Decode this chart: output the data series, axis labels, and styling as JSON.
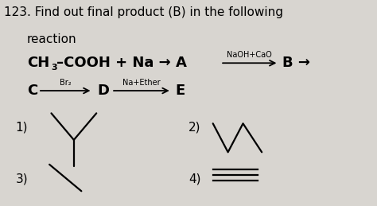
{
  "background_color": "#d8d5d0",
  "question_number": "123.",
  "title_line1": "Find out final product (B) in the following",
  "title_line2": "reaction",
  "fs_main": 11,
  "fs_small": 7,
  "lw": 1.6
}
